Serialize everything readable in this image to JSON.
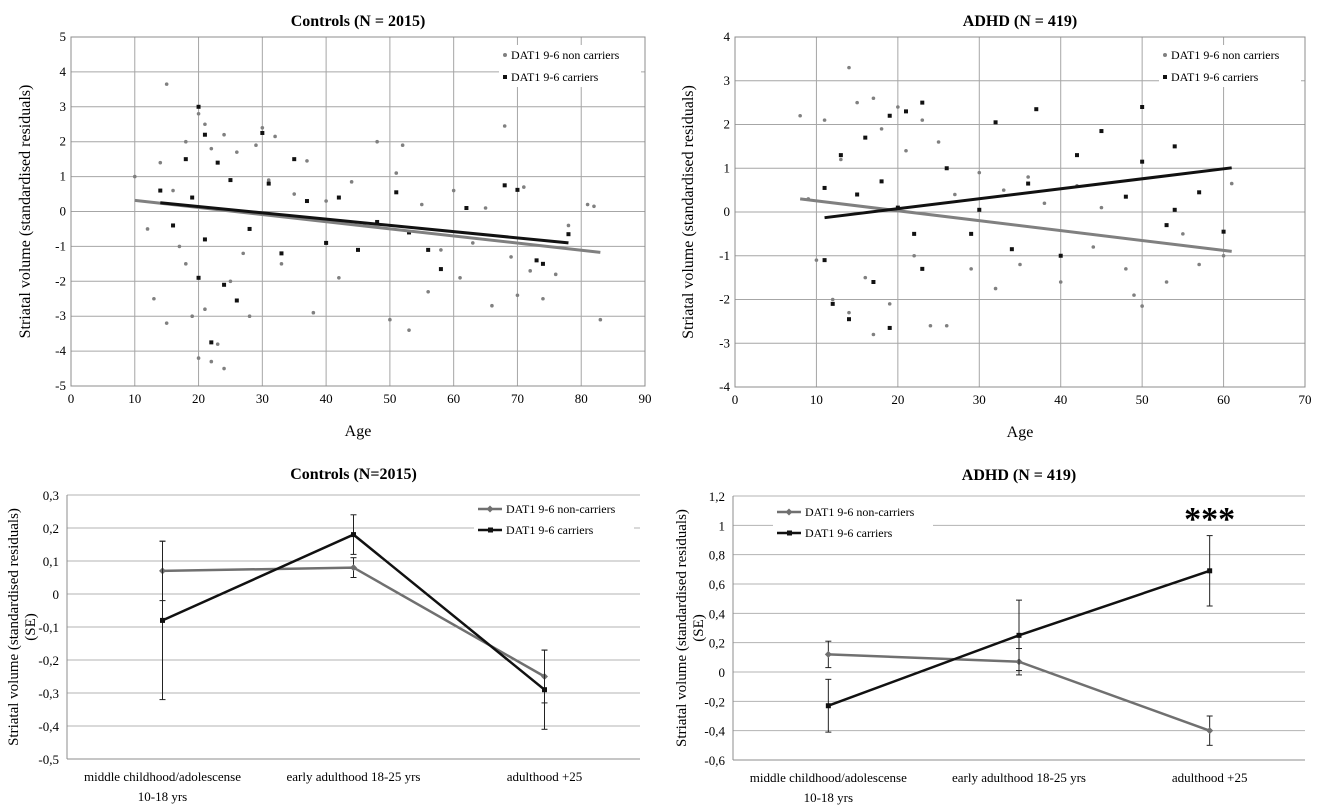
{
  "chart_data": [
    {
      "type": "scatter",
      "title": "Controls (N = 2015)",
      "xlabel": "Age",
      "ylabel": "Striatal volume (standardised residuals)",
      "xlim": [
        0,
        90
      ],
      "ylim": [
        -5,
        5
      ],
      "x_ticks": [
        "0",
        "10",
        "20",
        "30",
        "40",
        "50",
        "60",
        "70",
        "80",
        "90"
      ],
      "y_ticks": [
        "-5",
        "-4",
        "-3",
        "-2",
        "-1",
        "0",
        "1",
        "2",
        "3",
        "4",
        "5"
      ],
      "grid": true,
      "legend_position": "top-right",
      "series": [
        {
          "name": "DAT1 9-6 non carriers",
          "color": "#808080",
          "marker": "circle",
          "points": [
            [
              10,
              1.0
            ],
            [
              12,
              -0.5
            ],
            [
              13,
              -2.5
            ],
            [
              14,
              1.4
            ],
            [
              15,
              -3.2
            ],
            [
              15,
              3.65
            ],
            [
              16,
              0.6
            ],
            [
              17,
              -1.0
            ],
            [
              18,
              2.0
            ],
            [
              18,
              -1.5
            ],
            [
              19,
              -3.0
            ],
            [
              20,
              2.8
            ],
            [
              20,
              -4.2
            ],
            [
              21,
              2.5
            ],
            [
              21,
              -2.8
            ],
            [
              22,
              -4.3
            ],
            [
              22,
              1.8
            ],
            [
              23,
              -3.8
            ],
            [
              24,
              -4.5
            ],
            [
              24,
              2.2
            ],
            [
              25,
              -2.0
            ],
            [
              26,
              1.7
            ],
            [
              27,
              -1.2
            ],
            [
              28,
              -3.0
            ],
            [
              29,
              1.9
            ],
            [
              30,
              2.4
            ],
            [
              31,
              0.9
            ],
            [
              32,
              2.15
            ],
            [
              33,
              -1.5
            ],
            [
              35,
              0.5
            ],
            [
              37,
              1.45
            ],
            [
              38,
              -2.9
            ],
            [
              40,
              0.3
            ],
            [
              42,
              -1.9
            ],
            [
              44,
              0.85
            ],
            [
              46,
              -0.4
            ],
            [
              48,
              2.0
            ],
            [
              50,
              -3.1
            ],
            [
              51,
              1.1
            ],
            [
              52,
              1.9
            ],
            [
              53,
              -3.4
            ],
            [
              55,
              0.2
            ],
            [
              56,
              -2.3
            ],
            [
              58,
              -1.1
            ],
            [
              60,
              0.6
            ],
            [
              61,
              -1.9
            ],
            [
              63,
              -0.9
            ],
            [
              65,
              0.1
            ],
            [
              66,
              -2.7
            ],
            [
              68,
              2.45
            ],
            [
              69,
              -1.3
            ],
            [
              70,
              -2.4
            ],
            [
              71,
              0.7
            ],
            [
              72,
              -1.7
            ],
            [
              74,
              -2.5
            ],
            [
              76,
              -1.8
            ],
            [
              78,
              -0.4
            ],
            [
              81,
              0.2
            ],
            [
              82,
              0.15
            ],
            [
              83,
              -3.1
            ]
          ]
        },
        {
          "name": "DAT1 9-6 carriers",
          "color": "#111111",
          "marker": "square",
          "points": [
            [
              14,
              0.6
            ],
            [
              16,
              -0.4
            ],
            [
              18,
              1.5
            ],
            [
              19,
              0.4
            ],
            [
              20,
              3.0
            ],
            [
              20,
              -1.9
            ],
            [
              21,
              2.2
            ],
            [
              21,
              -0.8
            ],
            [
              22,
              -3.75
            ],
            [
              23,
              1.4
            ],
            [
              24,
              -2.1
            ],
            [
              25,
              0.9
            ],
            [
              26,
              -2.55
            ],
            [
              28,
              -0.5
            ],
            [
              30,
              2.25
            ],
            [
              31,
              0.8
            ],
            [
              33,
              -1.2
            ],
            [
              35,
              1.5
            ],
            [
              37,
              0.3
            ],
            [
              40,
              -0.9
            ],
            [
              42,
              0.4
            ],
            [
              45,
              -1.1
            ],
            [
              48,
              -0.3
            ],
            [
              51,
              0.55
            ],
            [
              53,
              -0.6
            ],
            [
              56,
              -1.1
            ],
            [
              58,
              -1.65
            ],
            [
              62,
              0.1
            ],
            [
              68,
              0.75
            ],
            [
              70,
              0.62
            ],
            [
              73,
              -1.4
            ],
            [
              74,
              -1.5
            ],
            [
              78,
              -0.65
            ]
          ]
        }
      ],
      "trendlines": [
        {
          "series": "DAT1 9-6 non carriers",
          "color": "#808080",
          "from": [
            10,
            0.32
          ],
          "to": [
            83,
            -1.17
          ]
        },
        {
          "series": "DAT1 9-6 carriers",
          "color": "#111111",
          "from": [
            14,
            0.25
          ],
          "to": [
            78,
            -0.9
          ]
        }
      ]
    },
    {
      "type": "scatter",
      "title": "ADHD (N = 419)",
      "xlabel": "Age",
      "ylabel": "Striatal volume (standardised residuals)",
      "xlim": [
        0,
        70
      ],
      "ylim": [
        -4,
        4
      ],
      "x_ticks": [
        "0",
        "10",
        "20",
        "30",
        "40",
        "50",
        "60",
        "70"
      ],
      "y_ticks": [
        "-4",
        "-3",
        "-2",
        "-1",
        "0",
        "1",
        "2",
        "3",
        "4"
      ],
      "grid": true,
      "legend_position": "top-right",
      "series": [
        {
          "name": "DAT1 9-6 non carriers",
          "color": "#808080",
          "marker": "circle",
          "points": [
            [
              8,
              2.2
            ],
            [
              9,
              0.3
            ],
            [
              10,
              -1.1
            ],
            [
              11,
              2.1
            ],
            [
              12,
              -2.0
            ],
            [
              13,
              1.2
            ],
            [
              14,
              3.3
            ],
            [
              14,
              -2.3
            ],
            [
              15,
              2.5
            ],
            [
              16,
              -1.5
            ],
            [
              17,
              2.6
            ],
            [
              17,
              -2.8
            ],
            [
              18,
              1.9
            ],
            [
              19,
              -2.1
            ],
            [
              20,
              2.4
            ],
            [
              21,
              1.4
            ],
            [
              22,
              -1.0
            ],
            [
              23,
              2.1
            ],
            [
              24,
              -2.6
            ],
            [
              25,
              1.6
            ],
            [
              26,
              -2.6
            ],
            [
              27,
              0.4
            ],
            [
              29,
              -1.3
            ],
            [
              30,
              0.9
            ],
            [
              32,
              -1.75
            ],
            [
              33,
              0.5
            ],
            [
              35,
              -1.2
            ],
            [
              36,
              0.8
            ],
            [
              38,
              0.2
            ],
            [
              40,
              -1.6
            ],
            [
              42,
              0.6
            ],
            [
              44,
              -0.8
            ],
            [
              45,
              0.1
            ],
            [
              48,
              -1.3
            ],
            [
              49,
              -1.9
            ],
            [
              50,
              -2.15
            ],
            [
              53,
              -1.6
            ],
            [
              55,
              -0.5
            ],
            [
              57,
              -1.2
            ],
            [
              60,
              -1.0
            ],
            [
              61,
              0.65
            ]
          ]
        },
        {
          "name": "DAT1 9-6 carriers",
          "color": "#111111",
          "marker": "square",
          "points": [
            [
              11,
              0.55
            ],
            [
              11,
              -1.1
            ],
            [
              12,
              -2.1
            ],
            [
              13,
              1.3
            ],
            [
              14,
              -2.45
            ],
            [
              15,
              0.4
            ],
            [
              16,
              1.7
            ],
            [
              17,
              -1.6
            ],
            [
              18,
              0.7
            ],
            [
              19,
              -2.65
            ],
            [
              19,
              2.2
            ],
            [
              20,
              0.1
            ],
            [
              21,
              2.3
            ],
            [
              22,
              -0.5
            ],
            [
              23,
              2.5
            ],
            [
              23,
              -1.3
            ],
            [
              26,
              1.0
            ],
            [
              29,
              -0.5
            ],
            [
              30,
              0.05
            ],
            [
              32,
              2.05
            ],
            [
              34,
              -0.85
            ],
            [
              36,
              0.65
            ],
            [
              37,
              2.35
            ],
            [
              40,
              -1.0
            ],
            [
              42,
              1.3
            ],
            [
              45,
              1.85
            ],
            [
              48,
              0.35
            ],
            [
              50,
              2.4
            ],
            [
              50,
              1.15
            ],
            [
              53,
              -0.3
            ],
            [
              54,
              1.5
            ],
            [
              54,
              0.05
            ],
            [
              57,
              0.45
            ],
            [
              60,
              -0.45
            ]
          ]
        }
      ],
      "trendlines": [
        {
          "series": "DAT1 9-6 non carriers",
          "color": "#808080",
          "from": [
            8,
            0.3
          ],
          "to": [
            61,
            -0.9
          ]
        },
        {
          "series": "DAT1 9-6 carriers",
          "color": "#111111",
          "from": [
            11,
            -0.13
          ],
          "to": [
            61,
            1.01
          ]
        }
      ]
    },
    {
      "type": "line",
      "title": "Controls (N=2015)",
      "xlabel": "",
      "ylabel": "Striatal volume (standardised residuals) (SE)",
      "ylabel_lines": [
        "Striatal volume (standardised residuals)",
        "(SE)"
      ],
      "categories": [
        "middle childhood/adolescense 10-18 yrs",
        "early adulthood 18-25 yrs",
        "adulthood +25"
      ],
      "category_lines": [
        [
          "middle childhood/adolescense",
          "10-18 yrs"
        ],
        [
          "early adulthood 18-25 yrs"
        ],
        [
          "adulthood +25"
        ]
      ],
      "ylim": [
        -0.5,
        0.3
      ],
      "y_ticks": [
        "0,3",
        "0,2",
        "0,1",
        "0",
        "-0,1",
        "-0,2",
        "-0,3",
        "-0,4",
        "-0,5"
      ],
      "grid": true,
      "legend_position": "top-right",
      "series": [
        {
          "name": "DAT1 9-6 non-carriers",
          "color": "#707070",
          "marker": "diamond",
          "values": [
            0.07,
            0.08,
            -0.25
          ],
          "se": [
            0.09,
            0.03,
            0.08
          ]
        },
        {
          "name": "DAT1 9-6 carriers",
          "color": "#111111",
          "marker": "square",
          "values": [
            -0.08,
            0.18,
            -0.29
          ],
          "se": [
            0.24,
            0.06,
            0.12
          ]
        }
      ]
    },
    {
      "type": "line",
      "title": "ADHD (N = 419)",
      "xlabel": "",
      "ylabel": "Striatal volume (standardised residuals) (SE)",
      "ylabel_lines": [
        "Striatal volume (standardised residuals)",
        "(SE)"
      ],
      "categories": [
        "middle childhood/adolescense 10-18 yrs",
        "early adulthood 18-25 yrs",
        "adulthood +25"
      ],
      "category_lines": [
        [
          "middle childhood/adolescense",
          "10-18 yrs"
        ],
        [
          "early adulthood 18-25 yrs"
        ],
        [
          "adulthood +25"
        ]
      ],
      "ylim": [
        -0.6,
        1.2
      ],
      "y_ticks": [
        "1,2",
        "1",
        "0,8",
        "0,6",
        "0,4",
        "0,2",
        "0",
        "-0,2",
        "-0,4",
        "-0,6"
      ],
      "grid": true,
      "legend_position": "top-left",
      "annotation": "***",
      "series": [
        {
          "name": "DAT1 9-6 non-carriers",
          "color": "#707070",
          "marker": "diamond",
          "values": [
            0.12,
            0.07,
            -0.4
          ],
          "se": [
            0.09,
            0.09,
            0.1
          ]
        },
        {
          "name": "DAT1 9-6 carriers",
          "color": "#111111",
          "marker": "square",
          "values": [
            -0.23,
            0.25,
            0.69
          ],
          "se": [
            0.18,
            0.24,
            0.24
          ]
        }
      ]
    }
  ]
}
